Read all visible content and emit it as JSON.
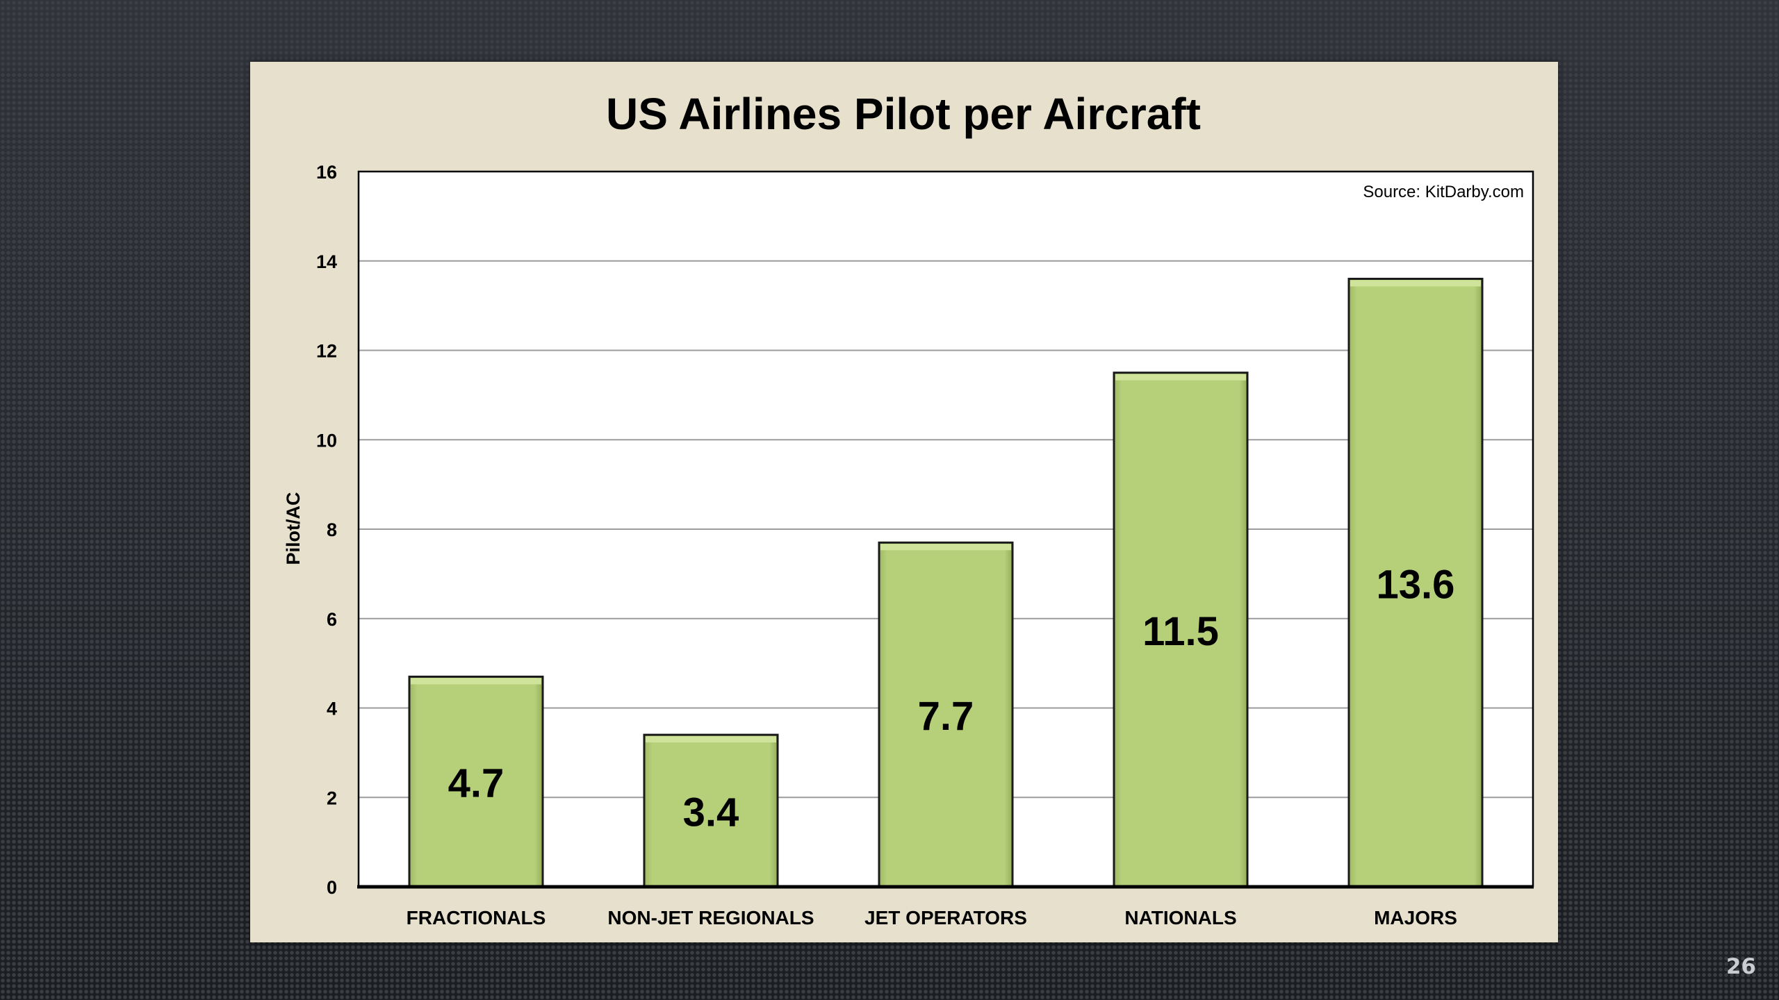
{
  "slide": {
    "number": "26"
  },
  "colors": {
    "bar_fill": "#b6cf79",
    "bar_top": "#cfe39a",
    "bar_outline": "#1a1a1a",
    "panel": "#e6e0cd",
    "plot": "#ffffff",
    "grid": "#9b9b9b"
  },
  "chart_data": {
    "type": "bar",
    "title": "US Airlines Pilot per Aircraft",
    "source_note": "Source: KitDarby.com",
    "xlabel": "",
    "ylabel": "Pilot/AC",
    "categories": [
      "FRACTIONALS",
      "NON-JET REGIONALS",
      "JET OPERATORS",
      "NATIONALS",
      "MAJORS"
    ],
    "values": [
      4.7,
      3.4,
      7.7,
      11.5,
      13.6
    ],
    "data_labels": [
      "4.7",
      "3.4",
      "7.7",
      "11.5",
      "13.6"
    ],
    "ylim": [
      0,
      16
    ],
    "yticks": [
      0,
      2,
      4,
      6,
      8,
      10,
      12,
      14,
      16
    ],
    "grid": true,
    "legend": "none"
  }
}
